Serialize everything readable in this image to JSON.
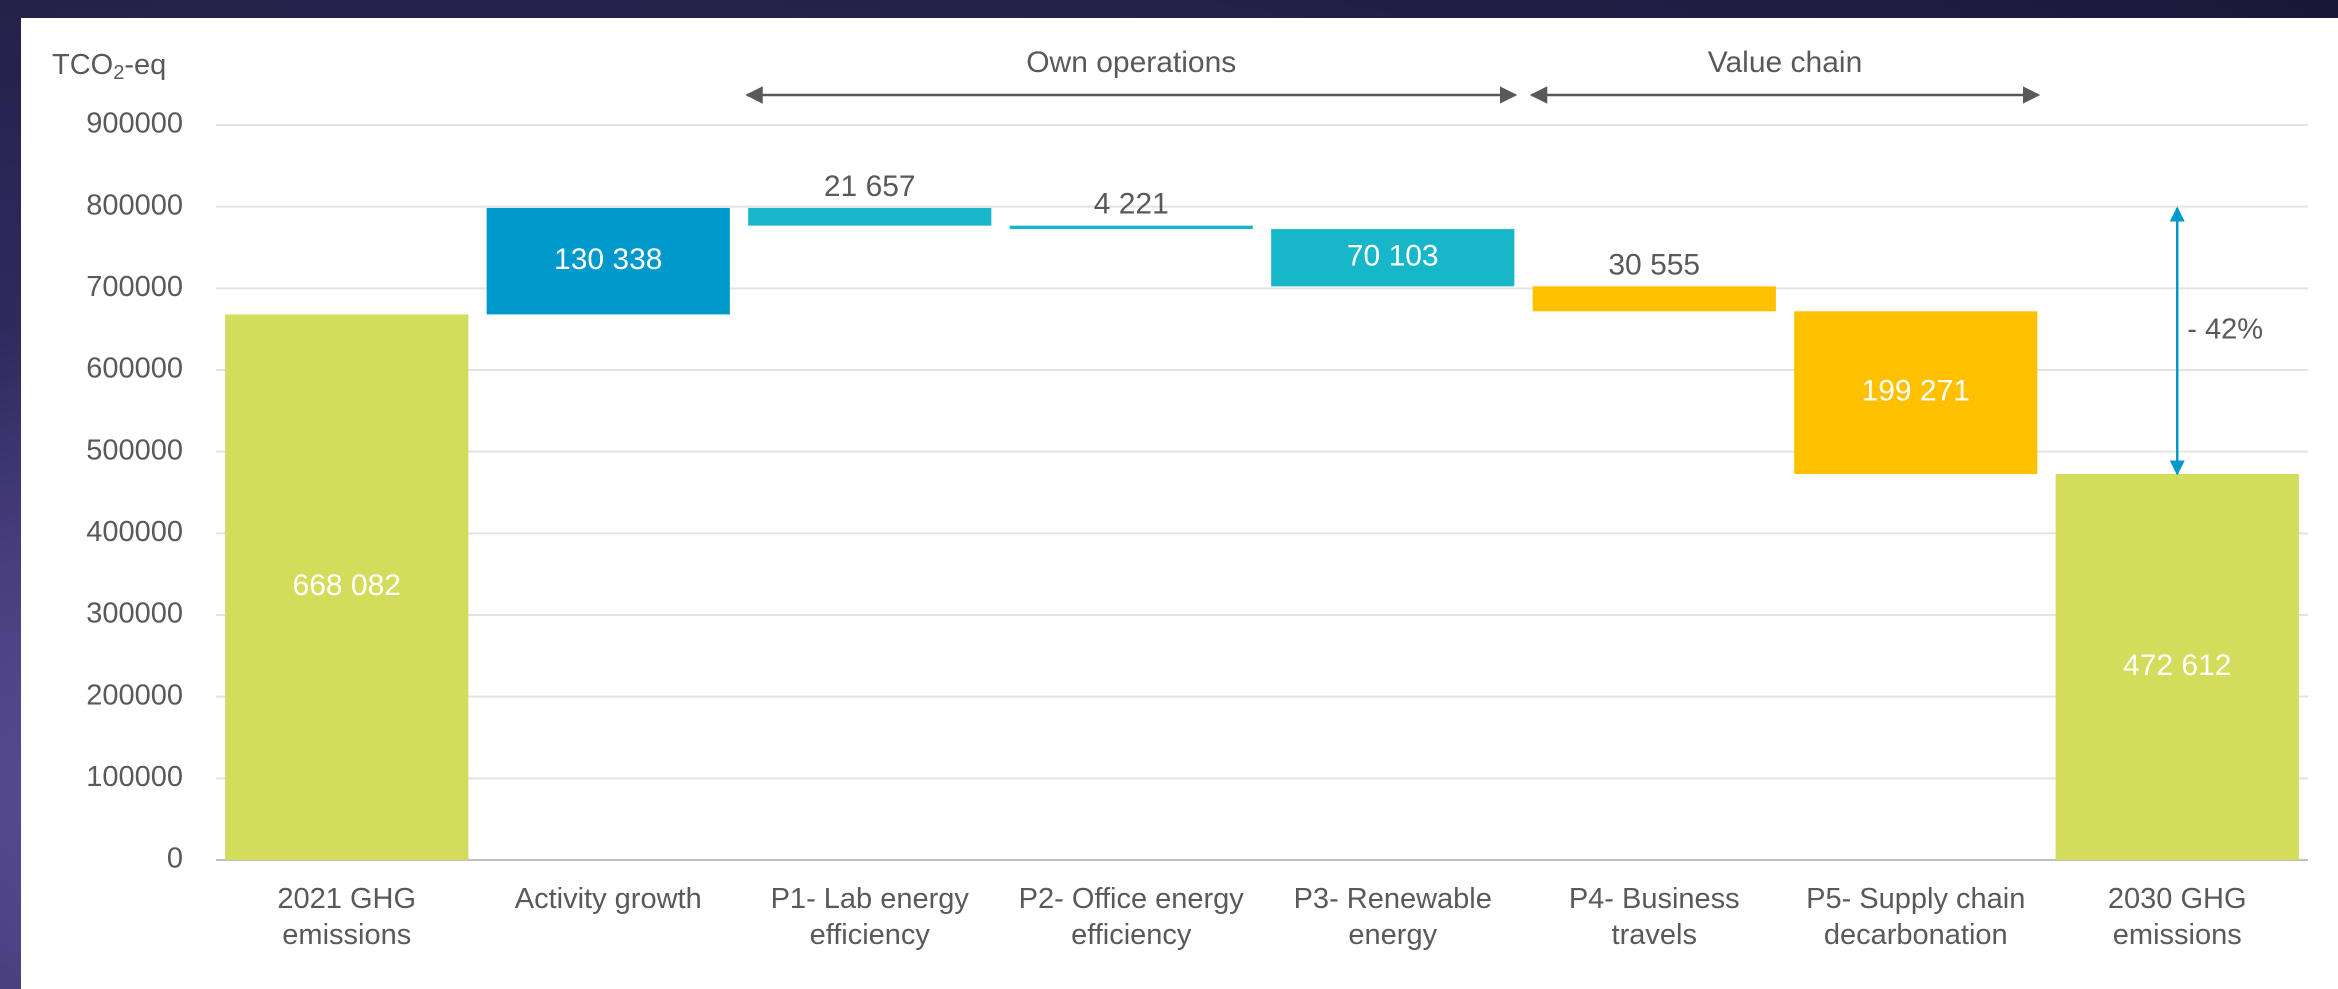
{
  "chart_data": {
    "type": "waterfall",
    "y_label": [
      "TCO",
      "2",
      "-eq"
    ],
    "categories": [
      [
        "2021 GHG",
        "emissions"
      ],
      [
        "Activity growth"
      ],
      [
        "P1- Lab energy",
        "efficiency"
      ],
      [
        "P2- Office energy",
        "efficiency"
      ],
      [
        "P3- Renewable",
        "energy"
      ],
      [
        "P4- Business",
        "travels"
      ],
      [
        "P5- Supply chain",
        "decarbonation"
      ],
      [
        "2030 GHG",
        "emissions"
      ]
    ],
    "measure": [
      "absolute",
      "relative",
      "relative",
      "relative",
      "relative",
      "relative",
      "relative",
      "total"
    ],
    "values": [
      668082,
      130338,
      -21657,
      -4221,
      -70103,
      -30555,
      -199271,
      472612
    ],
    "value_labels": [
      "668 082",
      "130 338",
      "21 657",
      "4 221",
      "70 103",
      "30 555",
      "199 271",
      "472 612"
    ],
    "colors": [
      "#d4dc5c",
      "#0099cc",
      "#17b6c8",
      "#17b6c8",
      "#17b6c8",
      "#ffc000",
      "#ffc000",
      "#d4dc5c"
    ],
    "ylim": [
      0,
      900000
    ],
    "yticks": [
      0,
      100000,
      200000,
      300000,
      400000,
      500000,
      600000,
      700000,
      800000,
      900000
    ],
    "grid": true,
    "annotations": [
      "Own operations",
      "Value chain",
      "- 42%"
    ]
  }
}
